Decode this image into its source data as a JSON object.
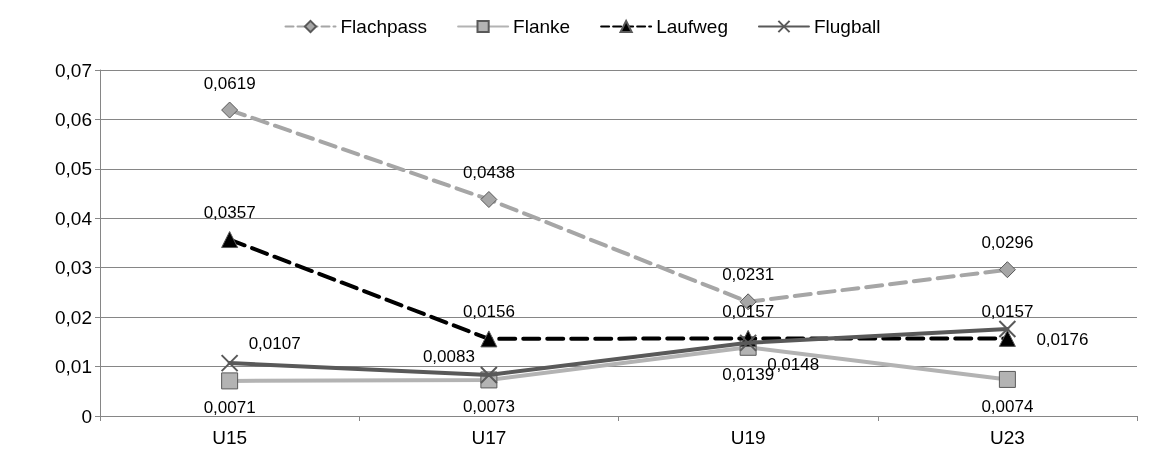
{
  "chart_data": {
    "type": "line",
    "categories": [
      "U15",
      "U17",
      "U19",
      "U23"
    ],
    "series": [
      {
        "name": "Flachpass",
        "color": "#a6a6a6",
        "marker": "diamond",
        "line_style": "dashed",
        "values": [
          0.0619,
          0.0438,
          0.0231,
          0.0296
        ],
        "value_labels": [
          "0,0619",
          "0,0438",
          "0,0231",
          "0,0296"
        ]
      },
      {
        "name": "Flanke",
        "color": "#b3b3b3",
        "marker": "square",
        "line_style": "solid",
        "values": [
          0.0071,
          0.0073,
          0.0139,
          0.0074
        ],
        "value_labels": [
          "0,0071",
          "0,0073",
          "0,0139",
          "0,0074"
        ]
      },
      {
        "name": "Laufweg",
        "color": "#000000",
        "marker": "triangle",
        "line_style": "dashed",
        "values": [
          0.0357,
          0.0156,
          0.0157,
          0.0157
        ],
        "value_labels": [
          "0,0357",
          "0,0156",
          "0,0157",
          "0,0157"
        ]
      },
      {
        "name": "Flugball",
        "color": "#595959",
        "marker": "cross",
        "line_style": "solid",
        "values": [
          0.0107,
          0.0083,
          0.0148,
          0.0176
        ],
        "value_labels": [
          "0,0107",
          "0,0083",
          "0,0148",
          "0,0176"
        ]
      }
    ],
    "ylim": [
      0,
      0.07
    ],
    "yticks": [
      0,
      {
        "value": 0.01,
        "label": "0,01"
      },
      {
        "value": 0.02,
        "label": "0,02"
      },
      {
        "value": 0.03,
        "label": "0,03"
      },
      {
        "value": 0.04,
        "label": "0,04"
      },
      {
        "value": 0.05,
        "label": "0,05"
      },
      {
        "value": 0.06,
        "label": "0,06"
      },
      {
        "value": 0.07,
        "label": "0,07"
      }
    ],
    "grid": "y",
    "legend": "top"
  }
}
